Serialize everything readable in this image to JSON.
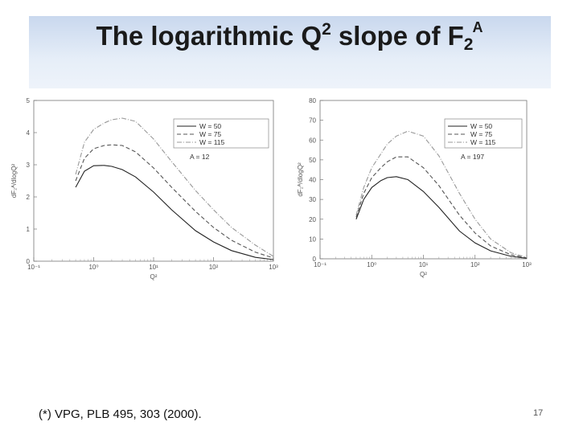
{
  "slide": {
    "title_main": "The logarithmic Q",
    "title_sup": "2",
    "title_mid": " slope of F",
    "title_sub": "2",
    "title_supA": "A",
    "reference": "(*) VPG, PLB 495, 303 (2000).",
    "page_number": "17"
  },
  "chart_data": [
    {
      "type": "line",
      "xscale": "log",
      "xlim": [
        0.1,
        1000
      ],
      "ylim": [
        0,
        5
      ],
      "xticks": [
        "10⁻¹",
        "10⁰",
        "10¹",
        "10²",
        "10³"
      ],
      "yticks": [
        "0",
        "1",
        "2",
        "3",
        "4",
        "5"
      ],
      "xlabel": "Q²",
      "ylabel": "dF₂ᴬ/dlogQ²",
      "annotation": "A = 12",
      "legend_position": "top-right",
      "series": [
        {
          "name": "W = 50",
          "style": "solid",
          "x": [
            0.5,
            0.7,
            1,
            1.5,
            2,
            3,
            5,
            10,
            20,
            50,
            100,
            200,
            500,
            1000
          ],
          "y": [
            2.3,
            2.8,
            2.97,
            2.98,
            2.95,
            2.85,
            2.62,
            2.15,
            1.6,
            0.95,
            0.6,
            0.33,
            0.12,
            0.05
          ]
        },
        {
          "name": "W = 75",
          "style": "dashed",
          "x": [
            0.5,
            0.7,
            1,
            1.5,
            2,
            3,
            5,
            10,
            20,
            50,
            100,
            200,
            500,
            1000
          ],
          "y": [
            2.5,
            3.2,
            3.5,
            3.6,
            3.62,
            3.6,
            3.4,
            2.9,
            2.3,
            1.55,
            1.05,
            0.65,
            0.28,
            0.1
          ]
        },
        {
          "name": "W = 115",
          "style": "dash-dot",
          "x": [
            0.5,
            0.7,
            1,
            1.5,
            2,
            3,
            5,
            10,
            20,
            50,
            100,
            200,
            500,
            1000
          ],
          "y": [
            2.7,
            3.7,
            4.1,
            4.3,
            4.4,
            4.45,
            4.35,
            3.8,
            3.1,
            2.2,
            1.6,
            1.05,
            0.5,
            0.15
          ]
        }
      ]
    },
    {
      "type": "line",
      "xscale": "log",
      "xlim": [
        0.1,
        1000
      ],
      "ylim": [
        0,
        80
      ],
      "xticks": [
        "10⁻¹",
        "10⁰",
        "10¹",
        "10²",
        "10³"
      ],
      "yticks": [
        "0",
        "10",
        "20",
        "30",
        "40",
        "50",
        "60",
        "70",
        "80"
      ],
      "xlabel": "Q²",
      "ylabel": "dF₂ᴬ/dlogQ²",
      "annotation": "A = 197",
      "legend_position": "top-right",
      "series": [
        {
          "name": "W = 50",
          "style": "solid",
          "x": [
            0.5,
            0.7,
            1,
            1.5,
            2,
            3,
            5,
            10,
            20,
            50,
            100,
            200,
            500,
            1000
          ],
          "y": [
            20,
            30,
            36,
            39.5,
            41,
            41.5,
            40,
            34,
            26,
            14,
            8,
            4,
            1.2,
            0.3
          ]
        },
        {
          "name": "W = 75",
          "style": "dashed",
          "x": [
            0.5,
            0.7,
            1,
            1.5,
            2,
            3,
            5,
            10,
            20,
            50,
            100,
            200,
            500,
            1000
          ],
          "y": [
            21,
            33,
            41,
            46,
            49,
            51.5,
            51.5,
            46,
            37,
            22,
            13,
            6.5,
            2,
            0.5
          ]
        },
        {
          "name": "W = 115",
          "style": "dash-dot",
          "x": [
            0.5,
            0.7,
            1,
            1.5,
            2,
            3,
            5,
            10,
            20,
            50,
            100,
            200,
            500,
            1000
          ],
          "y": [
            22,
            36,
            46,
            53,
            58,
            62,
            64.5,
            62,
            52,
            33,
            20,
            10,
            3,
            0.7
          ]
        }
      ]
    }
  ]
}
